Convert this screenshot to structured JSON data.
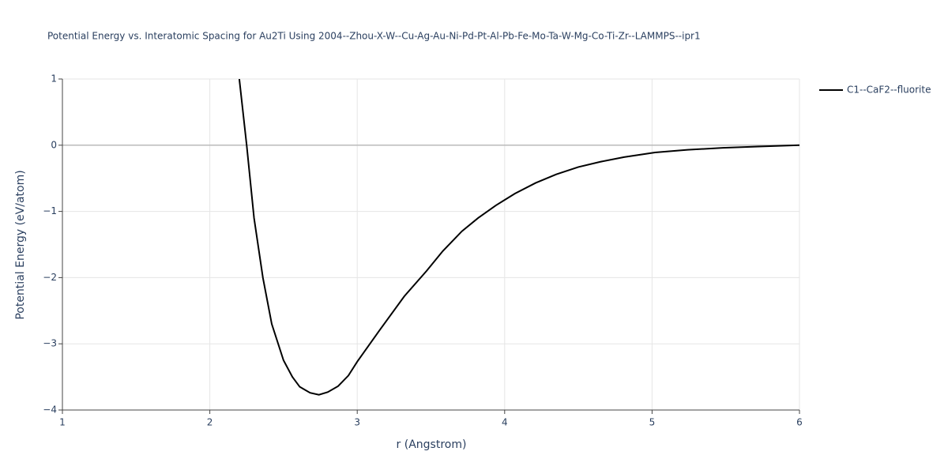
{
  "chart_data": {
    "type": "line",
    "title": "Potential Energy vs. Interatomic Spacing for Au2Ti Using 2004--Zhou-X-W--Cu-Ag-Au-Ni-Pd-Pt-Al-Pb-Fe-Mo-Ta-W-Mg-Co-Ti-Zr--LAMMPS--ipr1",
    "x_label": "r (Angstrom)",
    "y_label": "Potential Energy (eV/atom)",
    "x": [
      2.2,
      2.25,
      2.3,
      2.36,
      2.42,
      2.5,
      2.56,
      2.61,
      2.68,
      2.74,
      2.8,
      2.87,
      2.94,
      3.0,
      3.15,
      3.32,
      3.47,
      3.58,
      3.71,
      3.82,
      3.94,
      4.07,
      4.21,
      4.35,
      4.5,
      4.65,
      4.81,
      5.02,
      5.24,
      5.48,
      5.72,
      6.0
    ],
    "series": [
      {
        "name": "C1--CaF2--fluorite",
        "color": "#000000",
        "values": [
          1.0,
          0.0,
          -1.1,
          -2.0,
          -2.7,
          -3.25,
          -3.5,
          -3.65,
          -3.74,
          -3.77,
          -3.73,
          -3.64,
          -3.48,
          -3.27,
          -2.8,
          -2.28,
          -1.9,
          -1.6,
          -1.3,
          -1.1,
          -0.91,
          -0.73,
          -0.57,
          -0.44,
          -0.33,
          -0.25,
          -0.18,
          -0.11,
          -0.07,
          -0.04,
          -0.02,
          0.0
        ]
      }
    ],
    "xlim": [
      1,
      6
    ],
    "xticks": [
      1,
      2,
      3,
      4,
      5,
      6
    ],
    "ylim": [
      -4,
      1
    ],
    "yticks": [
      {
        "value": -4,
        "label": "−4"
      },
      {
        "value": -3,
        "label": "−3"
      },
      {
        "value": -2,
        "label": "−2"
      },
      {
        "value": -1,
        "label": "−1"
      },
      0,
      1
    ],
    "grid": true
  }
}
